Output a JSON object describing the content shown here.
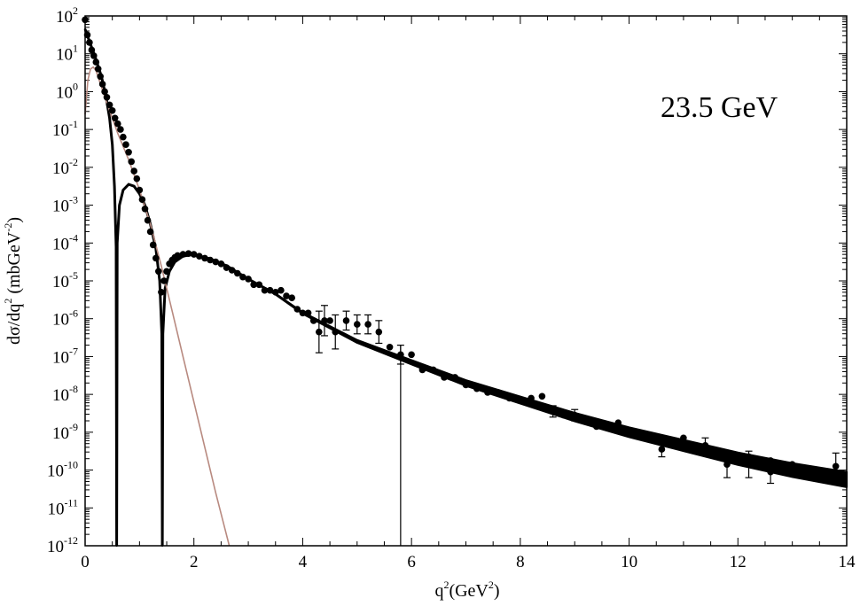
{
  "chart_data": {
    "type": "scatter",
    "title": "",
    "annotation": "23.5 GeV",
    "xlabel": {
      "base": "q",
      "sup1": "2",
      "mid": "(GeV",
      "sup2": "2",
      "end": ")"
    },
    "ylabel": {
      "pre": "dσ/dq",
      "sup1": "2",
      "mid": " (mbGeV",
      "sup2": "-2",
      "end": ")"
    },
    "xlim": [
      0,
      14
    ],
    "ylim_log10": [
      -12,
      2
    ],
    "yscale": "log",
    "grid": false,
    "x_ticks": [
      {
        "value": 0,
        "label": "0"
      },
      {
        "value": 2,
        "label": "2"
      },
      {
        "value": 4,
        "label": "4"
      },
      {
        "value": 6,
        "label": "6"
      },
      {
        "value": 8,
        "label": "8"
      },
      {
        "value": 10,
        "label": "10"
      },
      {
        "value": 12,
        "label": "12"
      },
      {
        "value": 14,
        "label": "14"
      }
    ],
    "y_ticks": [
      {
        "exp": 2,
        "base": "10",
        "sup": "2"
      },
      {
        "exp": 1,
        "base": "10",
        "sup": "1"
      },
      {
        "exp": 0,
        "base": "10",
        "sup": "0"
      },
      {
        "exp": -1,
        "base": "10",
        "sup": "-1"
      },
      {
        "exp": -2,
        "base": "10",
        "sup": "-2"
      },
      {
        "exp": -3,
        "base": "10",
        "sup": "-3"
      },
      {
        "exp": -4,
        "base": "10",
        "sup": "-4"
      },
      {
        "exp": -5,
        "base": "10",
        "sup": "-5"
      },
      {
        "exp": -6,
        "base": "10",
        "sup": "-6"
      },
      {
        "exp": -7,
        "base": "10",
        "sup": "-7"
      },
      {
        "exp": -8,
        "base": "10",
        "sup": "-8"
      },
      {
        "exp": -9,
        "base": "10",
        "sup": "-9"
      },
      {
        "exp": -10,
        "base": "10",
        "sup": "-10"
      },
      {
        "exp": -11,
        "base": "10",
        "sup": "-11"
      },
      {
        "exp": -12,
        "base": "10",
        "sup": "-12"
      }
    ],
    "series": [
      {
        "kind": "data_points",
        "color": "#000000",
        "points_log10": [
          [
            0.0,
            1.9
          ],
          [
            0.04,
            1.5
          ],
          [
            0.08,
            1.3
          ],
          [
            0.12,
            1.1
          ],
          [
            0.16,
            0.95
          ],
          [
            0.2,
            0.78
          ],
          [
            0.24,
            0.6
          ],
          [
            0.28,
            0.4
          ],
          [
            0.32,
            0.2
          ],
          [
            0.36,
            0.0
          ],
          [
            0.4,
            -0.15
          ],
          [
            0.45,
            -0.35
          ],
          [
            0.5,
            -0.5
          ],
          [
            0.55,
            -0.7
          ],
          [
            0.6,
            -0.85
          ],
          [
            0.65,
            -1.0
          ],
          [
            0.7,
            -1.2
          ],
          [
            0.75,
            -1.4
          ],
          [
            0.8,
            -1.6
          ],
          [
            0.85,
            -1.85
          ],
          [
            0.9,
            -2.1
          ],
          [
            0.95,
            -2.3
          ],
          [
            1.0,
            -2.6
          ],
          [
            1.05,
            -2.85
          ],
          [
            1.1,
            -3.1
          ],
          [
            1.15,
            -3.4
          ],
          [
            1.2,
            -3.7
          ],
          [
            1.25,
            -4.05
          ],
          [
            1.3,
            -4.4
          ],
          [
            1.35,
            -4.75
          ],
          [
            1.4,
            -5.3
          ],
          [
            1.45,
            -5.0
          ],
          [
            1.5,
            -4.75
          ],
          [
            1.55,
            -4.55
          ],
          [
            1.6,
            -4.45
          ],
          [
            1.65,
            -4.38
          ],
          [
            1.7,
            -4.33
          ],
          [
            1.8,
            -4.3
          ],
          [
            1.9,
            -4.28
          ],
          [
            2.0,
            -4.3
          ],
          [
            2.1,
            -4.35
          ],
          [
            2.2,
            -4.4
          ],
          [
            2.3,
            -4.45
          ],
          [
            2.4,
            -4.5
          ],
          [
            2.5,
            -4.55
          ],
          [
            2.6,
            -4.65
          ],
          [
            2.7,
            -4.72
          ],
          [
            2.8,
            -4.8
          ],
          [
            2.9,
            -4.9
          ],
          [
            3.0,
            -4.95
          ],
          [
            3.1,
            -5.1
          ],
          [
            3.2,
            -5.1
          ],
          [
            3.3,
            -5.25
          ],
          [
            3.4,
            -5.25
          ],
          [
            3.5,
            -5.3
          ],
          [
            3.6,
            -5.25
          ],
          [
            3.7,
            -5.4
          ],
          [
            3.8,
            -5.45
          ],
          [
            3.9,
            -5.75
          ],
          [
            4.0,
            -5.85
          ],
          [
            4.1,
            -5.85
          ],
          [
            4.2,
            -6.05
          ],
          [
            4.3,
            -6.35
          ],
          [
            4.4,
            -6.05
          ],
          [
            4.5,
            -6.05
          ],
          [
            4.6,
            -6.35
          ],
          [
            4.8,
            -6.05
          ],
          [
            5.0,
            -6.15
          ],
          [
            5.2,
            -6.15
          ],
          [
            5.4,
            -6.35
          ],
          [
            5.6,
            -6.75
          ],
          [
            5.8,
            -6.95
          ],
          [
            6.0,
            -6.95
          ],
          [
            6.2,
            -7.35
          ],
          [
            6.4,
            -7.35
          ],
          [
            6.6,
            -7.55
          ],
          [
            6.8,
            -7.55
          ],
          [
            7.0,
            -7.75
          ],
          [
            7.2,
            -7.85
          ],
          [
            7.4,
            -7.95
          ],
          [
            7.6,
            -7.95
          ],
          [
            7.8,
            -8.1
          ],
          [
            8.0,
            -8.15
          ],
          [
            8.2,
            -8.1
          ],
          [
            8.4,
            -8.05
          ],
          [
            8.6,
            -8.45
          ],
          [
            8.8,
            -8.55
          ],
          [
            9.0,
            -8.55
          ],
          [
            9.4,
            -8.85
          ],
          [
            9.8,
            -8.75
          ],
          [
            10.2,
            -9.05
          ],
          [
            10.6,
            -9.15
          ],
          [
            10.6,
            -9.45
          ],
          [
            11.0,
            -9.15
          ],
          [
            11.0,
            -9.35
          ],
          [
            11.4,
            -9.35
          ],
          [
            11.8,
            -9.85
          ],
          [
            12.2,
            -9.65
          ],
          [
            12.2,
            -9.85
          ],
          [
            12.6,
            -9.75
          ],
          [
            12.6,
            -10.05
          ],
          [
            13.0,
            -9.85
          ],
          [
            13.8,
            -9.9
          ]
        ],
        "errors_log10": [
          [
            4.3,
            -6.35,
            0.55
          ],
          [
            4.4,
            -6.05,
            0.4
          ],
          [
            4.6,
            -6.35,
            0.45
          ],
          [
            4.8,
            -6.05,
            0.25
          ],
          [
            5.0,
            -6.15,
            0.25
          ],
          [
            5.2,
            -6.15,
            0.25
          ],
          [
            5.4,
            -6.35,
            0.3
          ],
          [
            5.8,
            -6.95,
            0.25
          ],
          [
            8.6,
            -8.45,
            0.15
          ],
          [
            9.0,
            -8.55,
            0.15
          ],
          [
            10.6,
            -9.45,
            0.2
          ],
          [
            11.8,
            -9.85,
            0.35
          ],
          [
            12.2,
            -9.85,
            0.35
          ],
          [
            12.6,
            -10.05,
            0.3
          ],
          [
            13.8,
            -9.9,
            0.35
          ],
          [
            11.4,
            -9.35,
            0.2
          ]
        ]
      },
      {
        "kind": "fit_curve_band",
        "color": "#000000",
        "points_log10": [
          [
            0.0,
            1.65
          ],
          [
            0.1,
            1.25
          ],
          [
            0.2,
            0.85
          ],
          [
            0.3,
            0.4
          ],
          [
            0.38,
            -0.1
          ],
          [
            0.45,
            -0.7
          ],
          [
            0.5,
            -1.4
          ],
          [
            0.54,
            -2.5
          ],
          [
            0.57,
            -4.1
          ],
          [
            0.58,
            -12
          ],
          [
            0.59,
            -4.0
          ],
          [
            0.63,
            -3.0
          ],
          [
            0.7,
            -2.6
          ],
          [
            0.8,
            -2.45
          ],
          [
            0.9,
            -2.5
          ],
          [
            1.0,
            -2.7
          ],
          [
            1.1,
            -3.0
          ],
          [
            1.2,
            -3.5
          ],
          [
            1.3,
            -4.15
          ],
          [
            1.37,
            -5.0
          ],
          [
            1.41,
            -6.4
          ],
          [
            1.42,
            -12
          ],
          [
            1.43,
            -6.4
          ],
          [
            1.47,
            -5.2
          ],
          [
            1.55,
            -4.75
          ],
          [
            1.65,
            -4.5
          ],
          [
            1.8,
            -4.35
          ],
          [
            2.0,
            -4.3
          ],
          [
            2.3,
            -4.42
          ],
          [
            2.6,
            -4.6
          ],
          [
            3.0,
            -4.95
          ],
          [
            3.5,
            -5.35
          ],
          [
            4.0,
            -5.85
          ],
          [
            5.0,
            -6.6
          ],
          [
            6.0,
            -7.15
          ],
          [
            7.0,
            -7.7
          ],
          [
            8.0,
            -8.15
          ],
          [
            9.0,
            -8.6
          ],
          [
            10.0,
            -9.0
          ],
          [
            11.0,
            -9.35
          ],
          [
            12.0,
            -9.7
          ],
          [
            13.0,
            -10.0
          ],
          [
            14.0,
            -10.25
          ]
        ],
        "band_halfwidth_log10_at_end": 0.2
      },
      {
        "kind": "component_curve",
        "color": "#b88a80",
        "points_log10": [
          [
            0.0,
            -0.6
          ],
          [
            0.05,
            0.3
          ],
          [
            0.1,
            0.6
          ],
          [
            0.15,
            0.65
          ],
          [
            0.2,
            0.55
          ],
          [
            0.4,
            -0.3
          ],
          [
            0.6,
            -1.1
          ],
          [
            0.8,
            -1.8
          ],
          [
            1.0,
            -2.6
          ],
          [
            1.2,
            -3.5
          ],
          [
            1.4,
            -4.6
          ],
          [
            1.6,
            -5.8
          ],
          [
            1.8,
            -7.0
          ],
          [
            2.0,
            -8.2
          ],
          [
            2.2,
            -9.4
          ],
          [
            2.4,
            -10.6
          ],
          [
            2.65,
            -12.0
          ]
        ]
      }
    ]
  }
}
